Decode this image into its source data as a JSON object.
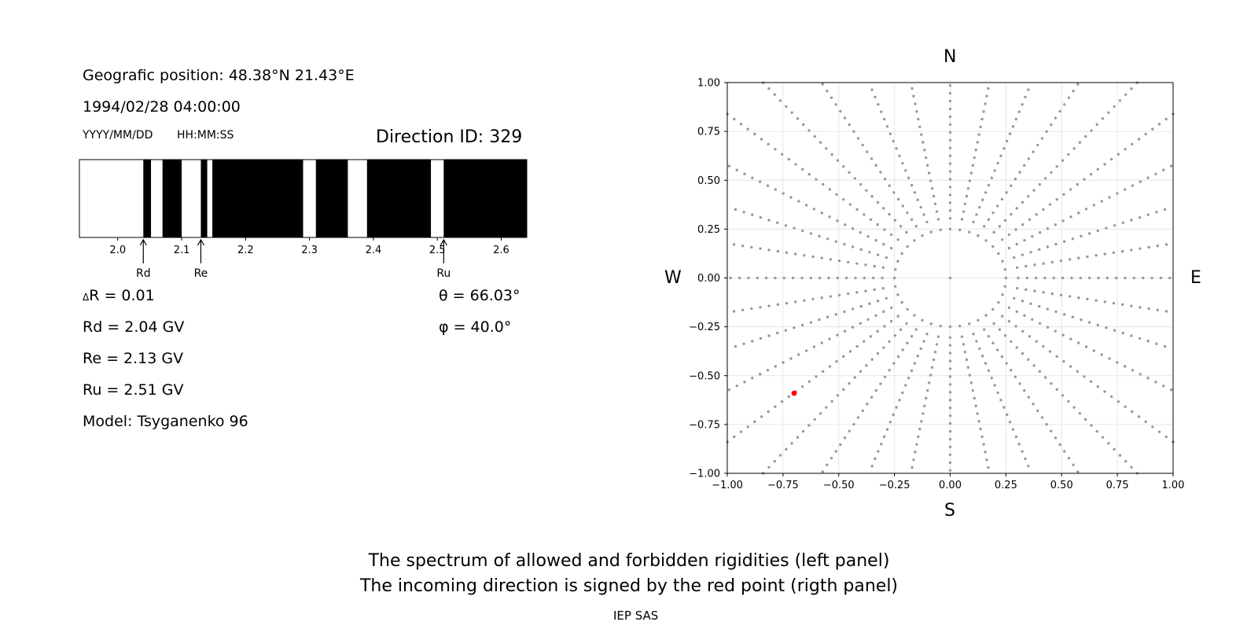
{
  "left_panel": {
    "geo_position": "Geografic position: 48.38°N 21.43°E",
    "datetime": "1994/02/28 04:00:00",
    "date_format_label": "YYYY/MM/DD",
    "time_format_label": "HH:MM:SS",
    "direction_id": "Direction ID: 329",
    "delta_r": "R = 0.01",
    "delta_symbol": "Δ",
    "rd": "Rd = 2.04 GV",
    "re": "Re = 2.13 GV",
    "ru": "Ru = 2.51 GV",
    "model": "Model: Tsyganenko 96",
    "theta": "θ = 66.03°",
    "phi": "φ = 40.0°"
  },
  "right_panel": {
    "north": "N",
    "south": "S",
    "west": "W",
    "east": "E"
  },
  "caption": {
    "line1": "The spectrum of allowed and forbidden rigidities (left panel)",
    "line2": "The incoming direction is signed by the red point (rigth panel)",
    "credit": "IEP SAS"
  },
  "colors": {
    "forbidden": "#000000",
    "allowed": "#ffffff",
    "grid_points": "#999999",
    "selected_direction": "#ff0000"
  },
  "chart_data": [
    {
      "type": "bar",
      "name": "rigidity spectrum",
      "xlim": [
        1.94,
        2.64
      ],
      "xticks": [
        2.0,
        2.1,
        2.2,
        2.3,
        2.4,
        2.5,
        2.6
      ],
      "xtick_labels": [
        "2.0",
        "2.1",
        "2.2",
        "2.3",
        "2.4",
        "2.5",
        "2.6"
      ],
      "forbidden_bands": [
        [
          2.04,
          2.052
        ],
        [
          2.07,
          2.1
        ],
        [
          2.13,
          2.14
        ],
        [
          2.148,
          2.29
        ],
        [
          2.31,
          2.36
        ],
        [
          2.39,
          2.49
        ],
        [
          2.51,
          2.64
        ]
      ],
      "markers": [
        {
          "label": "Rd",
          "x": 2.04
        },
        {
          "label": "Re",
          "x": 2.13
        },
        {
          "label": "Ru",
          "x": 2.51
        }
      ]
    },
    {
      "type": "scatter",
      "name": "direction grid",
      "xlim": [
        -1.0,
        1.0
      ],
      "ylim": [
        -1.0,
        1.0
      ],
      "grid": true,
      "xticks": [
        -1.0,
        -0.75,
        -0.5,
        -0.25,
        0.0,
        0.25,
        0.5,
        0.75,
        1.0
      ],
      "yticks": [
        -1.0,
        -0.75,
        -0.5,
        -0.25,
        0.0,
        0.25,
        0.5,
        0.75,
        1.0
      ],
      "xtick_labels": [
        "−1.00",
        "−0.75",
        "−0.50",
        "−0.25",
        "0.00",
        "0.25",
        "0.50",
        "0.75",
        "1.00"
      ],
      "ytick_labels": [
        "−1.00",
        "−0.75",
        "−0.50",
        "−0.25",
        "0.00",
        "0.25",
        "0.50",
        "0.75",
        "1.00"
      ],
      "radial_lines_count": 36,
      "ring_radius": 0.25,
      "selected_point": {
        "x": -0.7,
        "y": -0.59
      }
    }
  ]
}
